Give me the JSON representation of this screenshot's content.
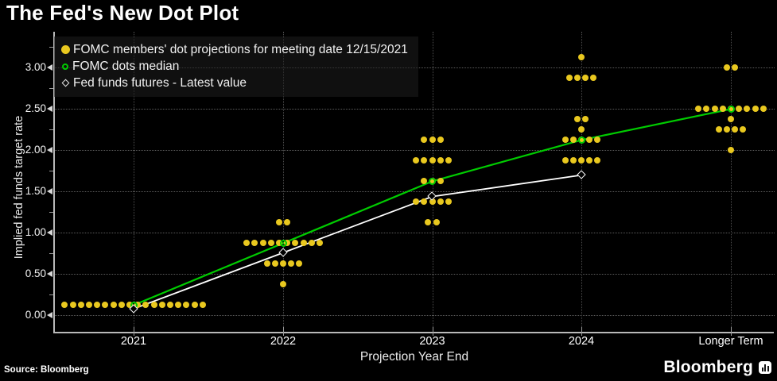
{
  "header": {
    "title": "The Fed's New Dot Plot"
  },
  "legend": {
    "items": [
      {
        "marker": "yellow-dot",
        "label": "FOMC members' dot projections for meeting date 12/15/2021"
      },
      {
        "marker": "green-circle",
        "label": "FOMC dots median"
      },
      {
        "marker": "white-diamond",
        "label": "Fed funds futures - Latest value"
      }
    ]
  },
  "footer": {
    "source": "Source: Bloomberg",
    "logo_text": "Bloomberg"
  },
  "chart_data": {
    "type": "scatter",
    "title": "The Fed's New Dot Plot",
    "xlabel": "Projection Year End",
    "ylabel": "Implied fed funds target rate",
    "categories": [
      "2021",
      "2022",
      "2023",
      "2024",
      "Longer Term"
    ],
    "ytick_labels": [
      "0.00",
      "0.50",
      "1.00",
      "1.50",
      "2.00",
      "2.50",
      "3.00"
    ],
    "yticks": [
      0.0,
      0.5,
      1.0,
      1.5,
      2.0,
      2.5,
      3.0
    ],
    "yticks_minor": [
      0.25,
      0.75,
      1.25,
      1.75,
      2.25,
      2.75,
      3.25
    ],
    "ylim": [
      0,
      3.4
    ],
    "grid": true,
    "legend_position": "top-left",
    "colors": {
      "dots": "#E9C81F",
      "median_line": "#00CC00",
      "futures_line": "#FFFFFF",
      "background": "#000000"
    },
    "dot_groups": [
      {
        "category": "2021",
        "rate": 0.125,
        "count": 18
      },
      {
        "category": "2022",
        "rate": 1.125,
        "count": 2
      },
      {
        "category": "2022",
        "rate": 0.875,
        "count": 10
      },
      {
        "category": "2022",
        "rate": 0.625,
        "count": 5
      },
      {
        "category": "2022",
        "rate": 0.375,
        "count": 1
      },
      {
        "category": "2023",
        "rate": 2.125,
        "count": 3
      },
      {
        "category": "2023",
        "rate": 1.875,
        "count": 5
      },
      {
        "category": "2023",
        "rate": 1.625,
        "count": 3
      },
      {
        "category": "2023",
        "rate": 1.375,
        "count": 5
      },
      {
        "category": "2023",
        "rate": 1.125,
        "count": 2
      },
      {
        "category": "2024",
        "rate": 3.125,
        "count": 1
      },
      {
        "category": "2024",
        "rate": 2.875,
        "count": 4
      },
      {
        "category": "2024",
        "rate": 2.375,
        "count": 2
      },
      {
        "category": "2024",
        "rate": 2.25,
        "count": 1
      },
      {
        "category": "2024",
        "rate": 2.125,
        "count": 5
      },
      {
        "category": "2024",
        "rate": 1.875,
        "count": 5
      },
      {
        "category": "Longer Term",
        "rate": 3.0,
        "count": 2
      },
      {
        "category": "Longer Term",
        "rate": 2.5,
        "count": 9
      },
      {
        "category": "Longer Term",
        "rate": 2.375,
        "count": 1
      },
      {
        "category": "Longer Term",
        "rate": 2.25,
        "count": 4
      },
      {
        "category": "Longer Term",
        "rate": 2.0,
        "count": 1
      }
    ],
    "series": [
      {
        "name": "FOMC dots median",
        "marker": "green-circle",
        "categories": [
          "2021",
          "2022",
          "2023",
          "2024",
          "Longer Term"
        ],
        "values": [
          0.125,
          0.875,
          1.625,
          2.125,
          2.5
        ]
      },
      {
        "name": "Fed funds futures - Latest value",
        "marker": "white-diamond",
        "categories": [
          "2021",
          "2022",
          "2023",
          "2024"
        ],
        "values": [
          0.08,
          0.76,
          1.44,
          1.7
        ]
      }
    ]
  }
}
